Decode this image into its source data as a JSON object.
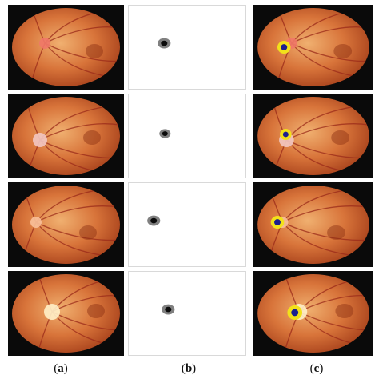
{
  "figure": {
    "column_labels": [
      {
        "paren_open": "(",
        "letter": "a",
        "paren_close": ")"
      },
      {
        "paren_open": "(",
        "letter": "b",
        "paren_close": ")"
      },
      {
        "paren_open": "(",
        "letter": "c",
        "paren_close": ")"
      }
    ],
    "colors": {
      "fundus_dark": "#a8421c",
      "fundus_mid": "#d8743a",
      "fundus_light": "#f0b070",
      "vessel": "#9a2a1a",
      "mask_outer": "#808080",
      "mask_inner": "#0b0b0b",
      "overlay_ring": "#f2e11a",
      "overlay_core": "#1c1f8f"
    },
    "rows": [
      {
        "name": "row-1"
      },
      {
        "name": "row-2"
      },
      {
        "name": "row-3"
      },
      {
        "name": "row-4"
      }
    ]
  }
}
